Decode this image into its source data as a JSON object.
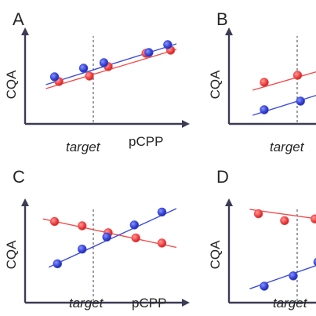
{
  "colors": {
    "red": "#f24b4b",
    "blue": "#3d4bdc",
    "axis": "#3b3b55",
    "text": "#262626"
  },
  "chart_data": [
    {
      "type": "scatter",
      "panel": "A",
      "ylabel": "CQA",
      "xlabel": "pCPP",
      "target_label": "target",
      "target_x": 0.5,
      "xlim": [
        0,
        1
      ],
      "ylim": [
        0,
        1
      ],
      "series": [
        {
          "color": "red",
          "x": [
            0.19,
            0.4,
            0.53,
            0.79,
            0.96
          ],
          "y": [
            0.44,
            0.51,
            0.63,
            0.8,
            0.84
          ]
        },
        {
          "color": "blue",
          "x": [
            0.16,
            0.36,
            0.5,
            0.81,
            0.94
          ],
          "y": [
            0.5,
            0.61,
            0.68,
            0.81,
            0.91
          ]
        }
      ],
      "lines": [
        {
          "color": "red",
          "x": [
            0.1,
            1.0
          ],
          "y": [
            0.35,
            0.85
          ]
        },
        {
          "color": "blue",
          "x": [
            0.1,
            1.0
          ],
          "y": [
            0.4,
            0.92
          ]
        }
      ]
    },
    {
      "type": "scatter",
      "panel": "B",
      "ylabel": "CQA",
      "xlabel": "",
      "target_label": "target",
      "target_x": 0.5,
      "xlim": [
        0,
        1
      ],
      "ylim": [
        0,
        1
      ],
      "series": [
        {
          "color": "red",
          "x": [
            0.2,
            0.43,
            0.64
          ],
          "y": [
            0.43,
            0.52,
            0.63
          ]
        },
        {
          "color": "blue",
          "x": [
            0.2,
            0.45,
            0.64
          ],
          "y": [
            0.08,
            0.19,
            0.33
          ]
        }
      ],
      "lines": [
        {
          "color": "red",
          "x": [
            0.12,
            1.0
          ],
          "y": [
            0.33,
            0.8
          ]
        },
        {
          "color": "blue",
          "x": [
            0.12,
            1.0
          ],
          "y": [
            0.01,
            0.52
          ]
        }
      ]
    },
    {
      "type": "scatter",
      "panel": "C",
      "ylabel": "CQA",
      "xlabel": "pCPP",
      "target_label": "target",
      "target_x": 0.5,
      "xlim": [
        0,
        1
      ],
      "ylim": [
        0,
        1
      ],
      "series": [
        {
          "color": "red",
          "x": [
            0.16,
            0.35,
            0.53,
            0.72,
            0.9
          ],
          "y": [
            0.85,
            0.8,
            0.72,
            0.66,
            0.6
          ]
        },
        {
          "color": "blue",
          "x": [
            0.18,
            0.35,
            0.52,
            0.71,
            0.9
          ],
          "y": [
            0.36,
            0.53,
            0.67,
            0.81,
            0.96
          ]
        }
      ],
      "lines": [
        {
          "color": "red",
          "x": [
            0.08,
            1.0
          ],
          "y": [
            0.88,
            0.55
          ]
        },
        {
          "color": "blue",
          "x": [
            0.12,
            1.0
          ],
          "y": [
            0.32,
            1.0
          ]
        }
      ]
    },
    {
      "type": "scatter",
      "panel": "D",
      "ylabel": "CQA",
      "xlabel": "",
      "target_label": "target",
      "target_x": 0.5,
      "xlim": [
        0,
        1
      ],
      "ylim": [
        0,
        1
      ],
      "series": [
        {
          "color": "red",
          "x": [
            0.16,
            0.34,
            0.55
          ],
          "y": [
            0.94,
            0.86,
            0.88
          ]
        },
        {
          "color": "blue",
          "x": [
            0.2,
            0.4,
            0.57
          ],
          "y": [
            0.1,
            0.22,
            0.38
          ]
        }
      ],
      "lines": [
        {
          "color": "red",
          "x": [
            0.1,
            1.0
          ],
          "y": [
            0.99,
            0.78
          ]
        },
        {
          "color": "blue",
          "x": [
            0.1,
            1.0
          ],
          "y": [
            0.07,
            0.6
          ]
        }
      ]
    }
  ]
}
